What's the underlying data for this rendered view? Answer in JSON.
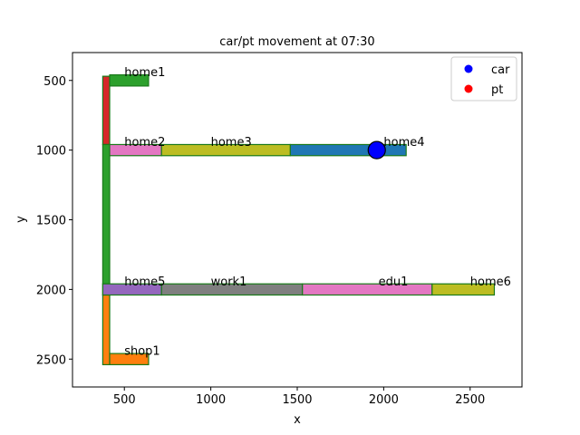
{
  "chart_data": {
    "type": "map",
    "title": "car/pt movement at 07:30",
    "xlabel": "x",
    "ylabel": "y",
    "xlim": [
      200,
      2800
    ],
    "ylim": [
      2700,
      300
    ],
    "y_inverted": true,
    "xticks": [
      500,
      1000,
      1500,
      2000,
      2500
    ],
    "yticks": [
      500,
      1000,
      1500,
      2000,
      2500
    ],
    "grid": false,
    "legend_position": "top-right",
    "legend": [
      {
        "label": "car",
        "color": "#0000ff"
      },
      {
        "label": "pt",
        "color": "#ff0000"
      }
    ],
    "link_edge_color": "#1a7a1a",
    "links": [
      {
        "x0": 375,
        "x1": 415,
        "y0": 470,
        "y1": 960,
        "color": "#d62728"
      },
      {
        "x0": 375,
        "x1": 415,
        "y0": 960,
        "y1": 1960,
        "color": "#2ca02c"
      },
      {
        "x0": 375,
        "x1": 415,
        "y0": 1960,
        "y1": 2040,
        "color": "#2ca02c"
      },
      {
        "x0": 375,
        "x1": 415,
        "y0": 2040,
        "y1": 2540,
        "color": "#ff7f0e"
      },
      {
        "x0": 415,
        "x1": 640,
        "y0": 460,
        "y1": 540,
        "color": "#2ca02c"
      },
      {
        "x0": 415,
        "x1": 715,
        "y0": 960,
        "y1": 1040,
        "color": "#e377c2"
      },
      {
        "x0": 715,
        "x1": 1460,
        "y0": 960,
        "y1": 1040,
        "color": "#bcbd22"
      },
      {
        "x0": 1460,
        "x1": 2130,
        "y0": 960,
        "y1": 1040,
        "color": "#1f77b4"
      },
      {
        "x0": 375,
        "x1": 715,
        "y0": 1960,
        "y1": 2040,
        "color": "#9467bd"
      },
      {
        "x0": 715,
        "x1": 1530,
        "y0": 1960,
        "y1": 2040,
        "color": "#7f7f7f"
      },
      {
        "x0": 1530,
        "x1": 2280,
        "y0": 1960,
        "y1": 2040,
        "color": "#e377c2"
      },
      {
        "x0": 2280,
        "x1": 2640,
        "y0": 1960,
        "y1": 2040,
        "color": "#bcbd22"
      },
      {
        "x0": 415,
        "x1": 640,
        "y0": 2460,
        "y1": 2540,
        "color": "#ff7f0e"
      }
    ],
    "places": [
      {
        "name": "home1",
        "x": 500,
        "y": 470
      },
      {
        "name": "home2",
        "x": 500,
        "y": 970
      },
      {
        "name": "home3",
        "x": 1000,
        "y": 970
      },
      {
        "name": "home4",
        "x": 2000,
        "y": 970
      },
      {
        "name": "home5",
        "x": 500,
        "y": 1970
      },
      {
        "name": "work1",
        "x": 1000,
        "y": 1970
      },
      {
        "name": "edu1",
        "x": 1970,
        "y": 1970
      },
      {
        "name": "home6",
        "x": 2500,
        "y": 1970
      },
      {
        "name": "shop1",
        "x": 500,
        "y": 2470
      }
    ],
    "agents": [
      {
        "mode": "car",
        "x": 1960,
        "y": 1000,
        "color": "#0000ff"
      }
    ]
  }
}
